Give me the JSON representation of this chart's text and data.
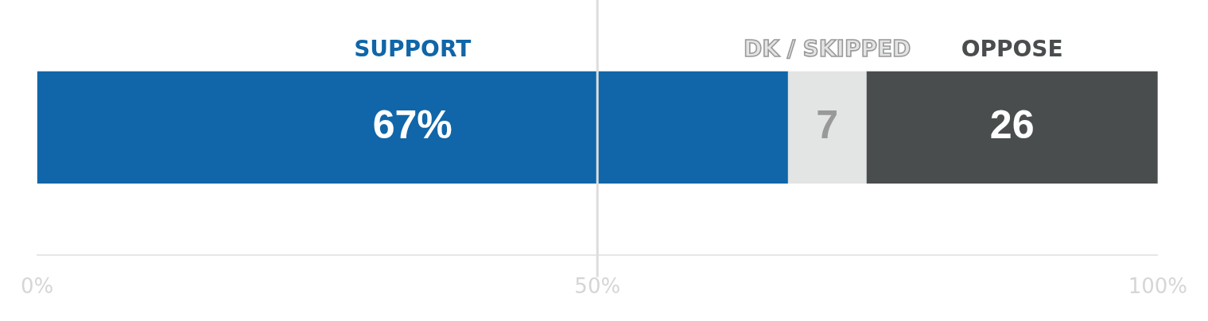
{
  "chart_data": {
    "type": "bar",
    "orientation": "horizontal",
    "stacked": true,
    "categories": [
      null
    ],
    "series": [
      {
        "name": "SUPPORT",
        "color": "#1066a8",
        "values": [
          67
        ],
        "value_labels": [
          "67%"
        ]
      },
      {
        "name": "DK / SKIPPED",
        "color": "#e3e4e4",
        "values": [
          7
        ],
        "value_labels": [
          "7"
        ]
      },
      {
        "name": "OPPOSE",
        "color": "#4a4d4e",
        "values": [
          26
        ],
        "value_labels": [
          "26"
        ]
      }
    ],
    "xlim": [
      0,
      100
    ],
    "xticks": [
      {
        "value": 0,
        "label": "0%"
      },
      {
        "value": 50,
        "label": "50%"
      },
      {
        "value": 100,
        "label": "100%"
      }
    ],
    "ref_lines": [
      {
        "axis": "x",
        "value": 50,
        "color": "#dddddd"
      }
    ],
    "grid": false
  }
}
